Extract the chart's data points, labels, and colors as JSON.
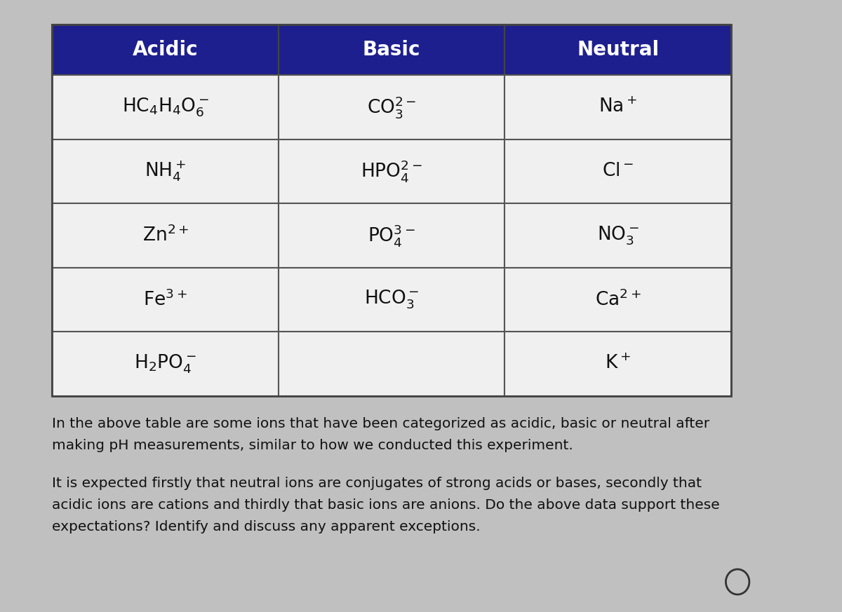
{
  "headers": [
    "Acidic",
    "Basic",
    "Neutral"
  ],
  "header_bg": "#1e1f8e",
  "header_color": "#ffffff",
  "cell_bg": "#f0f0f0",
  "border_color": "#555555",
  "acidic": [
    [
      "HC",
      "4",
      "H",
      "4",
      "O",
      "6",
      "−"
    ],
    [
      "NH",
      "4",
      "+",
      "",
      "",
      "",
      ""
    ],
    [
      "Zn",
      "2+",
      "",
      "",
      "",
      "",
      ""
    ],
    [
      "Fe",
      "3+",
      "",
      "",
      "",
      "",
      ""
    ],
    [
      "H",
      "2",
      "PO",
      "4",
      "−",
      "",
      ""
    ]
  ],
  "acidic_display": [
    "HC₄H₄O₆⁻",
    "NH₄⁺",
    "Zn²⁺",
    "Fe³⁺",
    "H₂PO₄⁻"
  ],
  "basic_display": [
    "CO₃²⁻",
    "HPO₄²⁻",
    "PO₄³⁻",
    "HCO₃⁻",
    ""
  ],
  "neutral_display": [
    "Na⁺",
    "Cl⁻",
    "NO₃⁻",
    "Ca²⁺",
    "K⁺"
  ],
  "acidic_latex": [
    "$\\mathregular{HC_4H_4O_6^-}$",
    "$\\mathregular{NH_4^+}$",
    "$\\mathregular{Zn^{2+}}$",
    "$\\mathregular{Fe^{3+}}$",
    "$\\mathregular{H_2PO_4^-}$"
  ],
  "basic_latex": [
    "$\\mathregular{CO_3^{2-}}$",
    "$\\mathregular{HPO_4^{2-}}$",
    "$\\mathregular{PO_4^{3-}}$",
    "$\\mathregular{HCO_3^-}$",
    ""
  ],
  "neutral_latex": [
    "$\\mathregular{Na^+}$",
    "$\\mathregular{Cl^-}$",
    "$\\mathregular{NO_3^-}$",
    "$\\mathregular{Ca^{2+}}$",
    "$\\mathregular{K^+}$"
  ],
  "para1": "In the above table are some ions that have been categorized as acidic, basic or neutral after\nmaking pH measurements, similar to how we conducted this experiment.",
  "para2": "It is expected firstly that neutral ions are conjugates of strong acids or bases, secondly that\nacidic ions are cations and thirdly that basic ions are anions. Do the above data support these\nexpectations? Identify and discuss any apparent exceptions.",
  "bg_color": "#c0c0c0",
  "font_size_header": 20,
  "font_size_cell": 19,
  "font_size_para": 14.5
}
